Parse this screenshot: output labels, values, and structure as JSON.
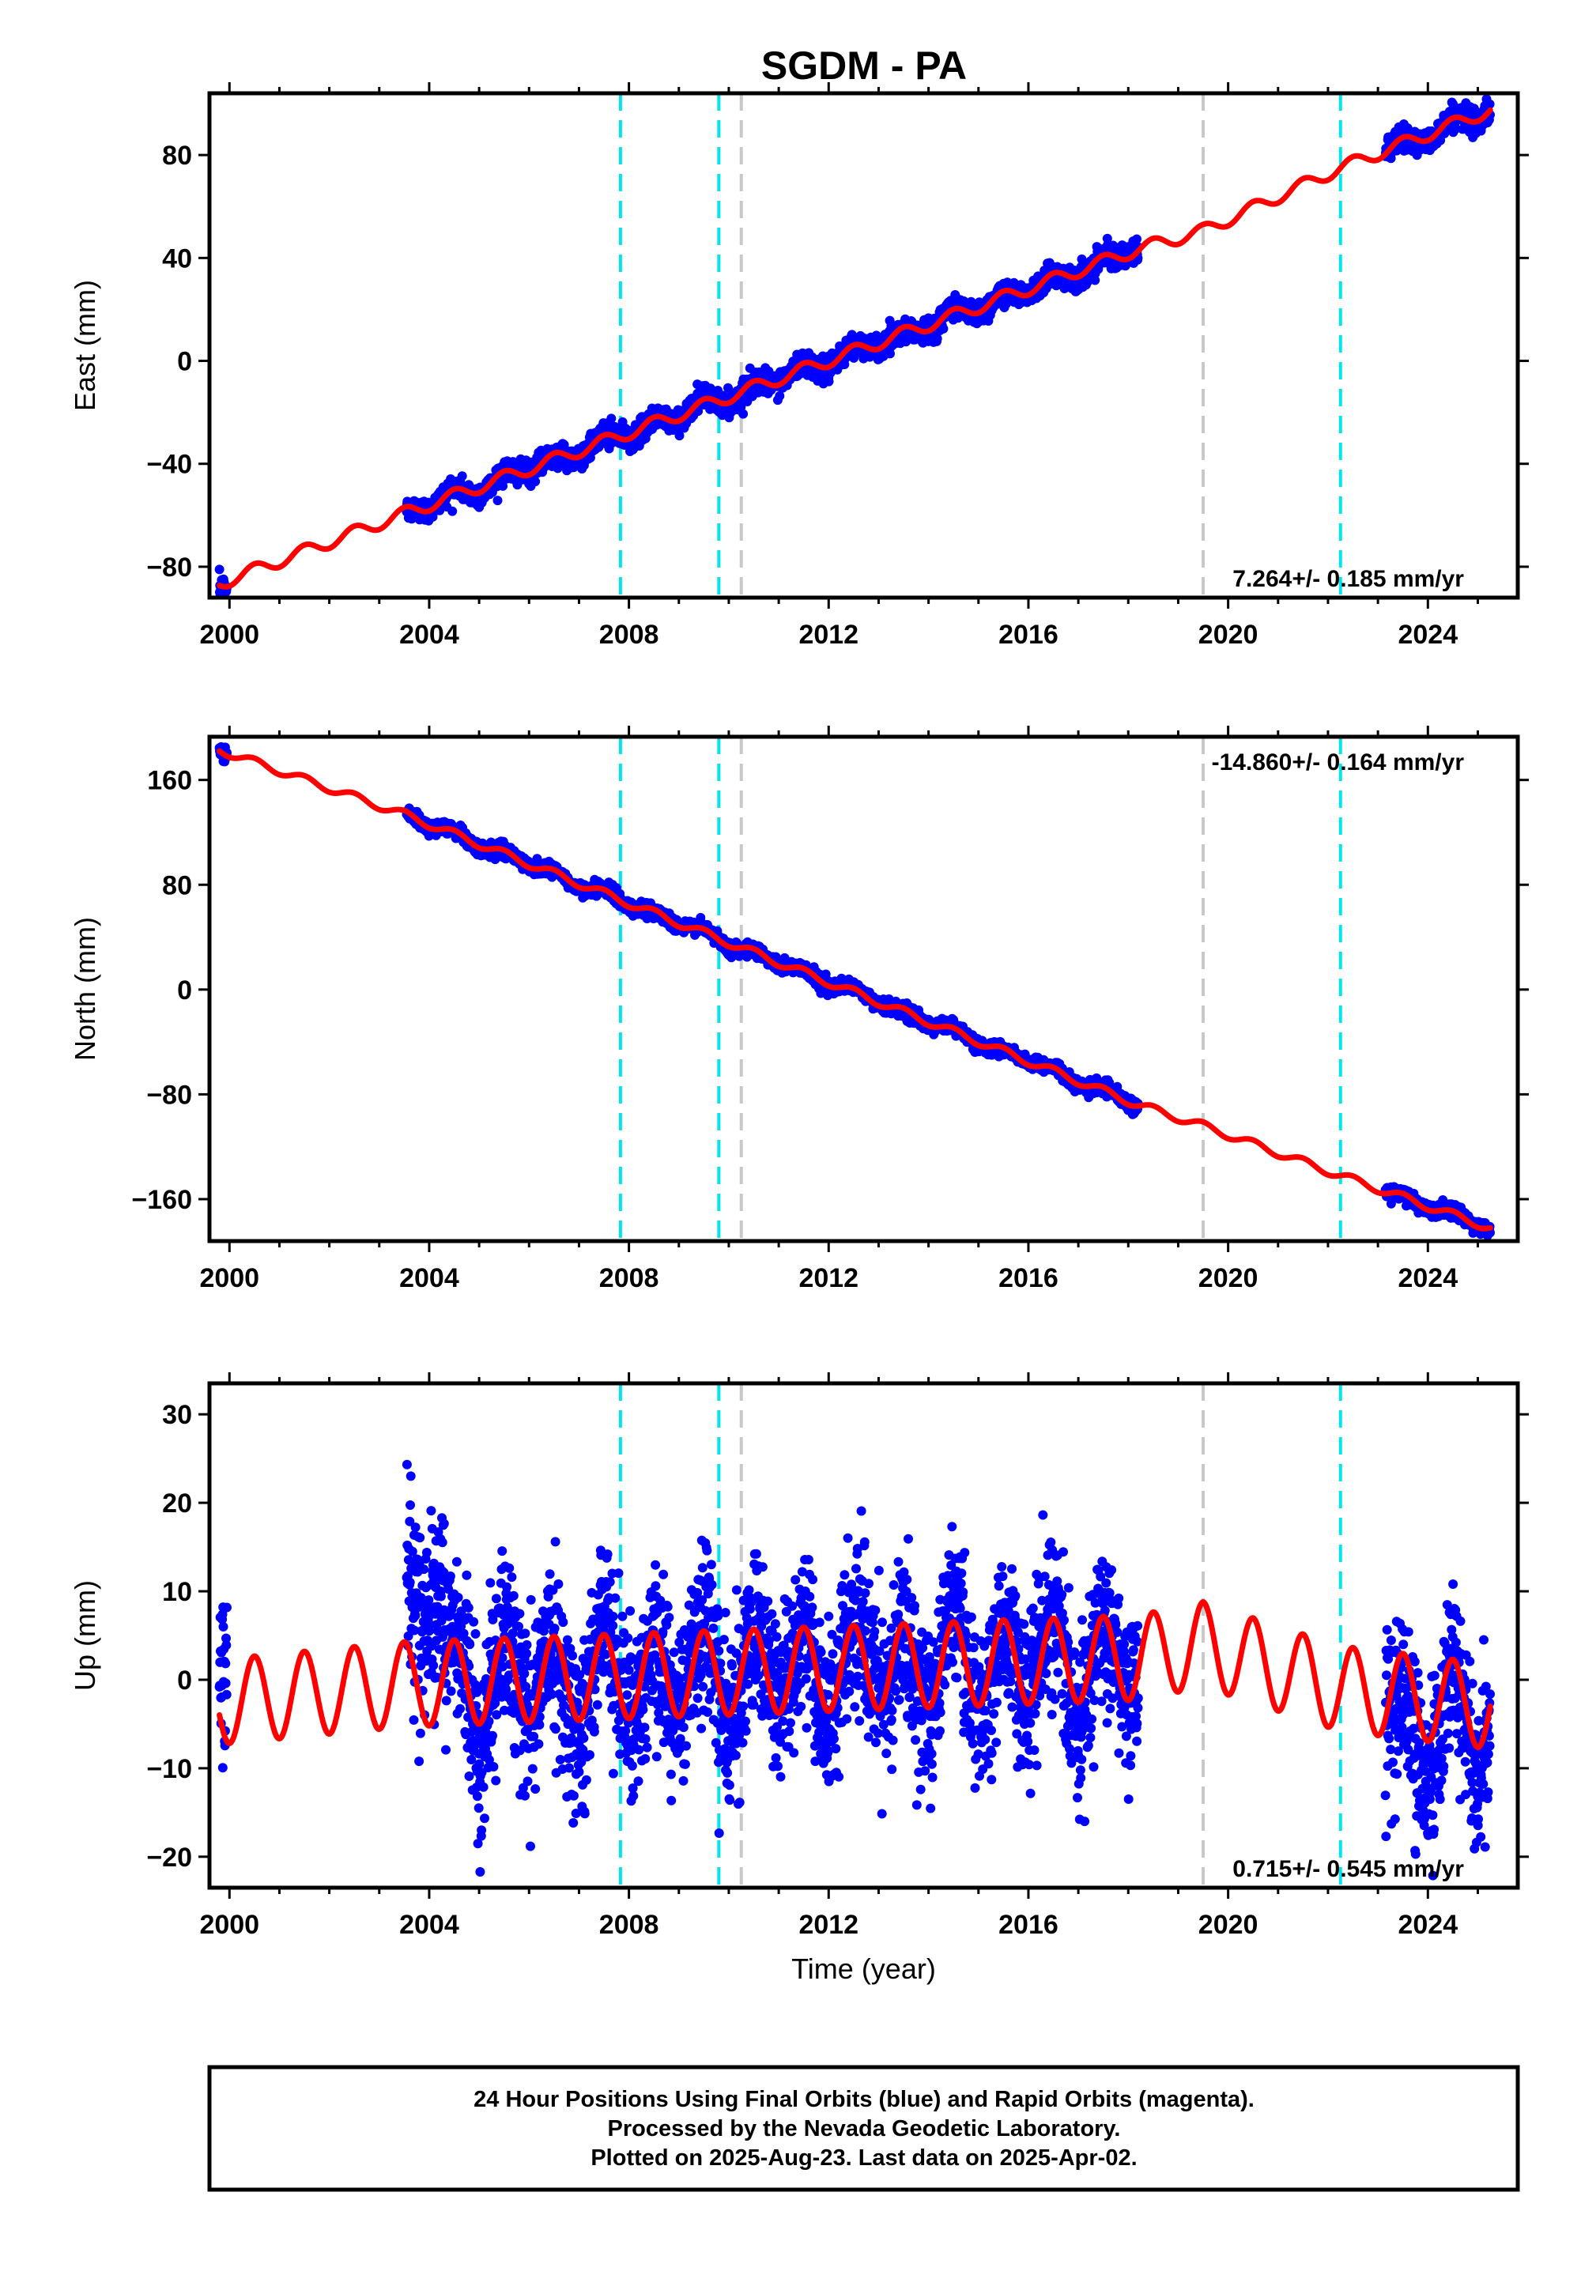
{
  "title": "SGDM - PA",
  "footer": {
    "lines": [
      "24 Hour Positions Using Final Orbits (blue) and Rapid Orbits (magenta).",
      "Processed by the Nevada Geodetic Laboratory.",
      "Plotted on 2025-Aug-23. Last data on 2025-Apr-02."
    ]
  },
  "colors": {
    "data": "#0000ff",
    "model": "#ff0000",
    "equipment_change": "#00e5ee",
    "earthquake": "#c8c8c8",
    "frame": "#000000"
  },
  "chart_data": [
    {
      "type": "scatter",
      "ylabel": "East (mm)",
      "xlabel": "",
      "xlim": [
        1999.6,
        2025.8
      ],
      "ylim": [
        -92,
        104
      ],
      "xticks": [
        2000,
        2004,
        2008,
        2012,
        2016,
        2020,
        2024
      ],
      "yticks": [
        -80,
        -40,
        0,
        40,
        80
      ],
      "rate_text": "7.264+/- 0.185 mm/yr",
      "rate_position": "bottom-right",
      "vlines_cyan": [
        2007.83,
        2009.8,
        2022.25
      ],
      "vlines_gray": [
        2010.25,
        2019.5
      ],
      "data_segments": [
        {
          "start": 1999.8,
          "end": 1999.95,
          "noise": 2.5
        },
        {
          "start": 2003.55,
          "end": 2018.2,
          "noise": 2.2
        },
        {
          "start": 2023.15,
          "end": 2025.25,
          "noise": 2.2
        }
      ],
      "model": {
        "anchors": [
          [
            1999.8,
            -86.5
          ],
          [
            2003.55,
            -59
          ],
          [
            2018.2,
            43.5
          ],
          [
            2019.5,
            50.5
          ],
          [
            2022.25,
            75
          ],
          [
            2025.25,
            97.5
          ]
        ],
        "seasonal_amplitude": 2.5
      }
    },
    {
      "type": "scatter",
      "ylabel": "North (mm)",
      "xlabel": "",
      "xlim": [
        1999.6,
        2025.8
      ],
      "ylim": [
        -192,
        193
      ],
      "xticks": [
        2000,
        2004,
        2008,
        2012,
        2016,
        2020,
        2024
      ],
      "yticks": [
        -160,
        -80,
        0,
        80,
        160
      ],
      "rate_text": "-14.860+/- 0.164 mm/yr",
      "rate_position": "top-right",
      "vlines_cyan": [
        2007.83,
        2009.8,
        2022.25
      ],
      "vlines_gray": [
        2010.25,
        2019.5
      ],
      "data_segments": [
        {
          "start": 1999.8,
          "end": 1999.95,
          "noise": 3
        },
        {
          "start": 2003.55,
          "end": 2018.2,
          "noise": 2.5
        },
        {
          "start": 2023.15,
          "end": 2025.25,
          "noise": 2.5
        }
      ],
      "model": {
        "anchors": [
          [
            1999.8,
            183
          ],
          [
            2003.55,
            133
          ],
          [
            2018.2,
            -88
          ],
          [
            2019.5,
            -104
          ],
          [
            2022.25,
            -142
          ],
          [
            2025.25,
            -182
          ]
        ],
        "seasonal_amplitude": 3
      }
    },
    {
      "type": "scatter",
      "ylabel": "Up (mm)",
      "xlabel": "Time (year)",
      "xlim": [
        1999.6,
        2025.8
      ],
      "ylim": [
        -23.5,
        33.5
      ],
      "xticks": [
        2000,
        2004,
        2008,
        2012,
        2016,
        2020,
        2024
      ],
      "yticks": [
        -20,
        -10,
        0,
        10,
        20,
        30
      ],
      "rate_text": "0.715+/- 0.545 mm/yr",
      "rate_position": "bottom-right",
      "vlines_cyan": [
        2007.83,
        2009.8,
        2022.25
      ],
      "vlines_gray": [
        2010.25,
        2019.5
      ],
      "data_segments": [
        {
          "start": 1999.8,
          "end": 1999.95,
          "noise": 5,
          "offset": 10
        },
        {
          "start": 2003.55,
          "end": 2004.3,
          "noise": 5,
          "offset": 10
        },
        {
          "start": 2004.3,
          "end": 2018.2,
          "noise": 4.5,
          "offset": 0
        },
        {
          "start": 2023.15,
          "end": 2025.25,
          "noise": 4.5,
          "offset": -3.5
        }
      ],
      "model": {
        "anchors": [
          [
            1999.8,
            -2.5
          ],
          [
            2003.55,
            -0.5
          ],
          [
            2018.2,
            2.5
          ],
          [
            2019.5,
            4
          ],
          [
            2022.25,
            -1
          ],
          [
            2025.25,
            -3
          ]
        ],
        "seasonal_amplitude": 4.8
      }
    }
  ]
}
